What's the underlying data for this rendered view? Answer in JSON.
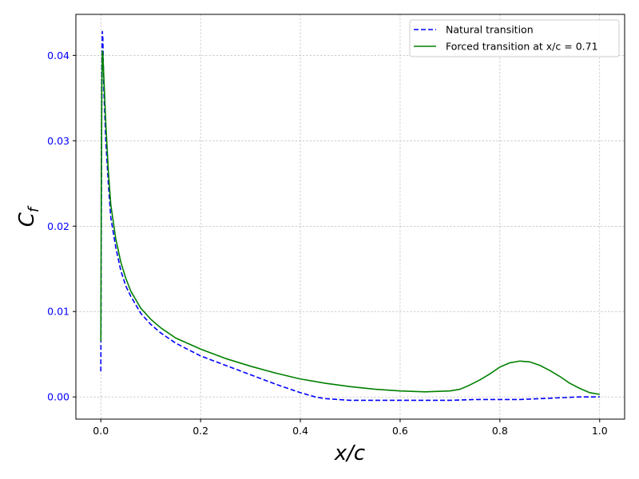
{
  "chart_data": {
    "type": "line",
    "xlabel_main": "x/c",
    "ylabel_main": "C",
    "ylabel_sub": "f",
    "xlim": [
      -0.05,
      1.05
    ],
    "ylim": [
      -0.0026,
      0.0448
    ],
    "xticks": [
      0.0,
      0.2,
      0.4,
      0.6,
      0.8,
      1.0
    ],
    "xtick_labels": [
      "0.0",
      "0.2",
      "0.4",
      "0.6",
      "0.8",
      "1.0"
    ],
    "yticks": [
      0.0,
      0.01,
      0.02,
      0.03,
      0.04
    ],
    "ytick_labels": [
      "0.00",
      "0.01",
      "0.02",
      "0.03",
      "0.04"
    ],
    "grid": true,
    "legend_position": "top-right",
    "colors": {
      "natural": "#0000ff",
      "forced": "#008000",
      "ytick": "#0000ff"
    },
    "series": [
      {
        "name": "Natural transition",
        "style": "dashed",
        "x": [
          0.0,
          0.001,
          0.002,
          0.003,
          0.004,
          0.006,
          0.01,
          0.015,
          0.02,
          0.03,
          0.04,
          0.05,
          0.06,
          0.08,
          0.1,
          0.12,
          0.15,
          0.2,
          0.25,
          0.3,
          0.35,
          0.4,
          0.43,
          0.45,
          0.5,
          0.55,
          0.6,
          0.65,
          0.7,
          0.75,
          0.8,
          0.84,
          0.88,
          0.92,
          0.96,
          1.0
        ],
        "y": [
          0.003,
          0.02,
          0.038,
          0.0428,
          0.042,
          0.036,
          0.03,
          0.025,
          0.021,
          0.0175,
          0.0148,
          0.013,
          0.0118,
          0.0098,
          0.0085,
          0.0075,
          0.0063,
          0.0048,
          0.0037,
          0.0026,
          0.0015,
          0.0005,
          0.0,
          -0.0002,
          -0.0004,
          -0.0004,
          -0.0004,
          -0.0004,
          -0.0004,
          -0.0003,
          -0.0003,
          -0.0003,
          -0.0002,
          -0.0001,
          0.0,
          0.0
        ]
      },
      {
        "name": "Forced transition at x/c = 0.71",
        "style": "solid",
        "x": [
          0.0,
          0.001,
          0.002,
          0.003,
          0.004,
          0.006,
          0.01,
          0.015,
          0.02,
          0.03,
          0.04,
          0.05,
          0.06,
          0.08,
          0.1,
          0.12,
          0.15,
          0.2,
          0.25,
          0.3,
          0.35,
          0.4,
          0.45,
          0.5,
          0.55,
          0.6,
          0.65,
          0.7,
          0.72,
          0.74,
          0.76,
          0.78,
          0.8,
          0.82,
          0.84,
          0.86,
          0.88,
          0.9,
          0.92,
          0.94,
          0.96,
          0.98,
          1.0
        ],
        "y": [
          0.0065,
          0.025,
          0.036,
          0.0405,
          0.0402,
          0.0375,
          0.032,
          0.0265,
          0.0225,
          0.0185,
          0.0158,
          0.0139,
          0.0124,
          0.0104,
          0.0091,
          0.0081,
          0.0069,
          0.0056,
          0.0045,
          0.0036,
          0.0028,
          0.0021,
          0.0016,
          0.0012,
          0.0009,
          0.0007,
          0.0006,
          0.0007,
          0.0009,
          0.0014,
          0.002,
          0.0027,
          0.0035,
          0.004,
          0.0042,
          0.0041,
          0.0037,
          0.0031,
          0.0024,
          0.0016,
          0.001,
          0.0005,
          0.0003
        ]
      }
    ]
  }
}
